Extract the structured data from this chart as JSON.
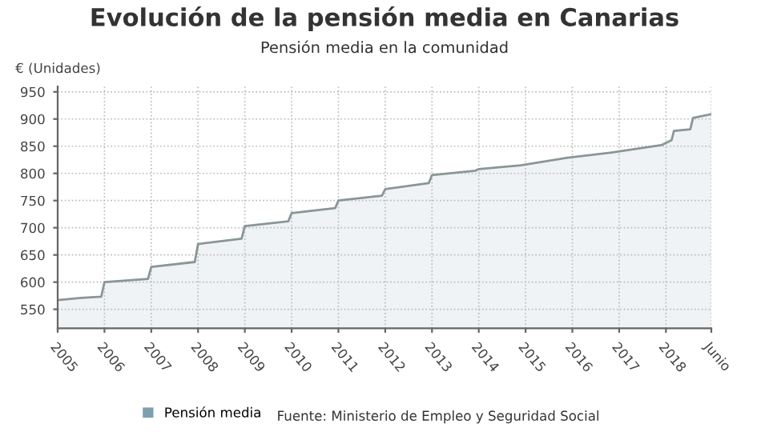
{
  "chart_data": {
    "type": "area",
    "title": "Evolución de la pensión media en Canarias",
    "subtitle": "Pensión media en la comunidad",
    "ylabel": "€ (Unidades)",
    "annotations": [
      "Fuente: Ministerio de Empleo y Seguridad Social"
    ],
    "x": [
      2005.0,
      2005.5,
      2005.93,
      2006.0,
      2006.93,
      2007.0,
      2007.93,
      2008.0,
      2008.93,
      2009.0,
      2009.93,
      2010.0,
      2010.93,
      2011.0,
      2011.93,
      2012.0,
      2012.93,
      2013.0,
      2013.93,
      2014.0,
      2014.9,
      2015.9,
      2016.9,
      2017.9,
      2018.12,
      2018.17,
      2018.52,
      2018.58,
      2018.97
    ],
    "series": [
      {
        "name": "Pensión media",
        "color": "#7f9fb0",
        "values": [
          567,
          571,
          573,
          600,
          606,
          628,
          637,
          670,
          680,
          703,
          712,
          727,
          736,
          750,
          759,
          771,
          782,
          797,
          805,
          808,
          815,
          829,
          839,
          852,
          861,
          878,
          881,
          902,
          909
        ]
      }
    ],
    "xlim": [
      2005,
      2018.97
    ],
    "xticks": [
      2005,
      2006,
      2007,
      2008,
      2009,
      2010,
      2011,
      2012,
      2013,
      2014,
      2015,
      2016,
      2017,
      2018,
      {
        "value": 2018.97,
        "label": "Junio"
      }
    ],
    "ylim": [
      515,
      960
    ],
    "yticks": [
      550,
      600,
      650,
      700,
      750,
      800,
      850,
      900,
      950
    ],
    "grid": true,
    "legend": "bottom"
  }
}
